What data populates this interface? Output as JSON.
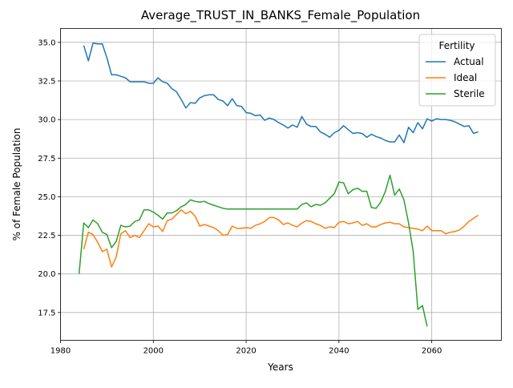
{
  "chart_data": {
    "type": "line",
    "title": "Average_TRUST_IN_BANKS_Female_Population",
    "xlabel": "Years",
    "ylabel": "% of Female Population",
    "xlim": [
      1980,
      2075
    ],
    "ylim": [
      15.7,
      35.9
    ],
    "x_ticks": [
      1980,
      2000,
      2020,
      2040,
      2060
    ],
    "y_ticks": [
      17.5,
      20.0,
      22.5,
      25.0,
      27.5,
      30.0,
      32.5,
      35.0
    ],
    "x_tick_labels": [
      "1980",
      "2000",
      "2020",
      "2040",
      "2060"
    ],
    "y_tick_labels": [
      "17.5",
      "20.0",
      "22.5",
      "25.0",
      "27.5",
      "30.0",
      "32.5",
      "35.0"
    ],
    "grid": true,
    "legend": {
      "title": "Fertility",
      "placement": "top-right"
    },
    "series": [
      {
        "name": "Actual",
        "color": "#1f77b4",
        "x": [
          1985,
          1986,
          1987,
          1988,
          1989,
          1990,
          1991,
          1992,
          1993,
          1994,
          1995,
          1996,
          1997,
          1998,
          1999,
          2000,
          2001,
          2002,
          2003,
          2004,
          2005,
          2006,
          2007,
          2008,
          2009,
          2010,
          2011,
          2012,
          2013,
          2014,
          2015,
          2016,
          2017,
          2018,
          2019,
          2020,
          2021,
          2022,
          2023,
          2024,
          2025,
          2026,
          2027,
          2028,
          2029,
          2030,
          2031,
          2032,
          2033,
          2034,
          2035,
          2036,
          2037,
          2038,
          2039,
          2040,
          2041,
          2042,
          2043,
          2044,
          2045,
          2046,
          2047,
          2048,
          2049,
          2050,
          2051,
          2052,
          2053,
          2054,
          2055,
          2056,
          2057,
          2058,
          2059,
          2060,
          2061,
          2062,
          2063,
          2064,
          2065,
          2066,
          2067,
          2068,
          2069,
          2070
        ],
        "y": [
          34.8,
          33.8,
          34.95,
          34.9,
          34.9,
          34.0,
          32.9,
          32.9,
          32.8,
          32.7,
          32.45,
          32.45,
          32.45,
          32.45,
          32.35,
          32.35,
          32.7,
          32.45,
          32.35,
          32.0,
          31.8,
          31.3,
          30.75,
          31.1,
          31.05,
          31.4,
          31.55,
          31.6,
          31.6,
          31.3,
          31.2,
          30.9,
          31.35,
          30.9,
          30.85,
          30.45,
          30.4,
          30.25,
          30.3,
          29.95,
          30.1,
          30.0,
          29.8,
          29.65,
          29.45,
          29.65,
          29.5,
          30.2,
          29.7,
          29.55,
          29.55,
          29.2,
          29.05,
          28.85,
          29.15,
          29.3,
          29.6,
          29.35,
          29.1,
          29.15,
          29.1,
          28.85,
          29.05,
          28.9,
          28.8,
          28.65,
          28.55,
          28.55,
          29.0,
          28.5,
          29.5,
          29.15,
          29.8,
          29.4,
          30.05,
          29.9,
          30.05,
          30.0,
          30.0,
          29.95,
          29.85,
          29.7,
          29.55,
          29.6,
          29.1,
          29.2
        ]
      },
      {
        "name": "Ideal",
        "color": "#ff7f0e",
        "x": [
          1985,
          1986,
          1987,
          1988,
          1989,
          1990,
          1991,
          1992,
          1993,
          1994,
          1995,
          1996,
          1997,
          1998,
          1999,
          2000,
          2001,
          2002,
          2003,
          2004,
          2005,
          2006,
          2007,
          2008,
          2009,
          2010,
          2011,
          2012,
          2013,
          2014,
          2015,
          2016,
          2017,
          2018,
          2019,
          2020,
          2021,
          2022,
          2023,
          2024,
          2025,
          2026,
          2027,
          2028,
          2029,
          2030,
          2031,
          2032,
          2033,
          2034,
          2035,
          2036,
          2037,
          2038,
          2039,
          2040,
          2041,
          2042,
          2043,
          2044,
          2045,
          2046,
          2047,
          2048,
          2049,
          2050,
          2051,
          2052,
          2053,
          2054,
          2055,
          2056,
          2057,
          2058,
          2059,
          2060,
          2061,
          2062,
          2063,
          2064,
          2065,
          2066,
          2067,
          2068,
          2069,
          2070
        ],
        "y": [
          21.6,
          22.7,
          22.55,
          22.05,
          21.45,
          21.6,
          20.45,
          21.1,
          22.6,
          22.8,
          22.35,
          22.5,
          22.35,
          22.8,
          23.25,
          23.05,
          23.1,
          22.75,
          23.45,
          23.55,
          23.85,
          24.15,
          23.9,
          24.05,
          23.75,
          23.1,
          23.2,
          23.1,
          23.0,
          22.8,
          22.5,
          22.55,
          23.1,
          22.95,
          22.95,
          23.0,
          22.95,
          23.15,
          23.25,
          23.4,
          23.65,
          23.65,
          23.5,
          23.2,
          23.3,
          23.15,
          23.05,
          23.3,
          23.45,
          23.4,
          23.25,
          23.15,
          22.95,
          23.05,
          23.0,
          23.35,
          23.4,
          23.25,
          23.3,
          23.4,
          23.15,
          23.25,
          23.05,
          23.05,
          23.2,
          23.3,
          23.35,
          23.25,
          23.25,
          23.05,
          23.0,
          22.95,
          22.9,
          22.8,
          23.1,
          22.8,
          22.8,
          22.8,
          22.6,
          22.7,
          22.75,
          22.85,
          23.1,
          23.4,
          23.6,
          23.8
        ]
      },
      {
        "name": "Sterile",
        "color": "#2ca02c",
        "x": [
          1984,
          1985,
          1986,
          1987,
          1988,
          1989,
          1990,
          1991,
          1992,
          1993,
          1994,
          1995,
          1996,
          1997,
          1998,
          1999,
          2000,
          2001,
          2002,
          2003,
          2004,
          2005,
          2006,
          2007,
          2008,
          2009,
          2010,
          2011,
          2012,
          2013,
          2014,
          2015,
          2016,
          2017,
          2018,
          2019,
          2020,
          2021,
          2022,
          2023,
          2024,
          2025,
          2026,
          2027,
          2028,
          2029,
          2030,
          2031,
          2032,
          2033,
          2034,
          2035,
          2036,
          2037,
          2038,
          2039,
          2040,
          2041,
          2042,
          2043,
          2044,
          2045,
          2046,
          2047,
          2048,
          2049,
          2050,
          2051,
          2052,
          2053,
          2054,
          2055,
          2056,
          2057,
          2058,
          2059
        ],
        "y": [
          20.0,
          23.3,
          23.0,
          23.5,
          23.25,
          22.7,
          22.55,
          21.7,
          22.1,
          23.15,
          23.05,
          23.1,
          23.4,
          23.5,
          24.15,
          24.15,
          24.0,
          23.8,
          23.55,
          23.95,
          23.95,
          24.1,
          24.35,
          24.5,
          24.8,
          24.7,
          24.65,
          24.7,
          24.55,
          24.45,
          24.35,
          24.25,
          24.2,
          24.2,
          24.2,
          24.2,
          24.2,
          24.2,
          24.2,
          24.2,
          24.2,
          24.2,
          24.2,
          24.2,
          24.2,
          24.2,
          24.2,
          24.2,
          24.5,
          24.6,
          24.35,
          24.5,
          24.45,
          24.6,
          24.9,
          25.2,
          25.95,
          25.9,
          25.2,
          25.45,
          25.55,
          25.35,
          25.35,
          24.3,
          24.25,
          24.65,
          25.35,
          26.4,
          25.1,
          25.5,
          24.8,
          23.3,
          21.45,
          17.7,
          17.95,
          16.6
        ]
      }
    ]
  }
}
